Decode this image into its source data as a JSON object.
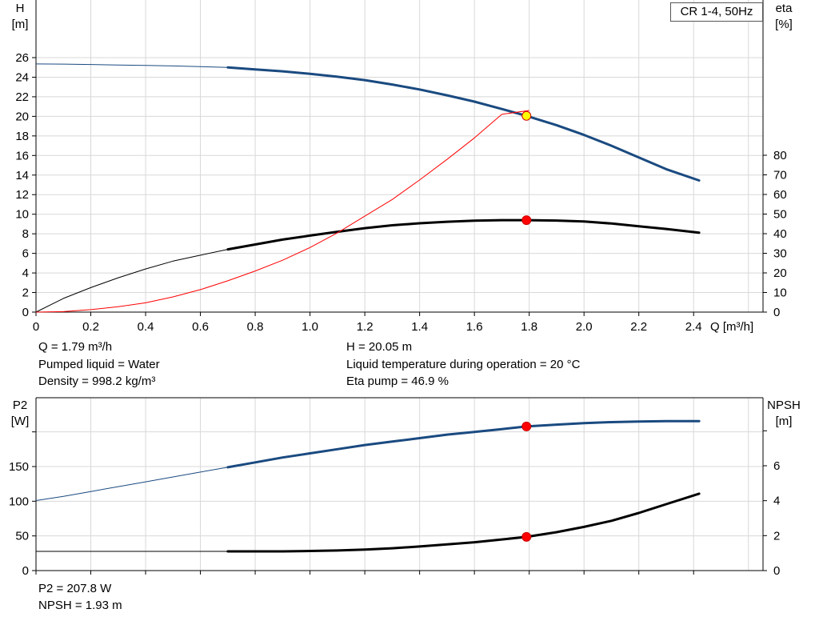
{
  "legend_label": "CR 1-4, 50Hz",
  "info": {
    "q": "Q = 1.79 m³/h",
    "liquid": "Pumped liquid = Water",
    "density": "Density = 998.2 kg/m³",
    "h": "H = 20.05 m",
    "temperature": "Liquid temperature during operation = 20 °C",
    "eta": "Eta pump = 46.9 %",
    "p2": "P2 = 207.8 W",
    "npsh": "NPSH = 1.93 m"
  },
  "chart_data": [
    {
      "type": "line",
      "title": "",
      "xlabel": "Q [m³/h]",
      "xlim": [
        0,
        2.6
      ],
      "xticks": [
        0,
        0.2,
        0.4,
        0.6,
        0.8,
        1.0,
        1.2,
        1.4,
        1.6,
        1.8,
        2.0,
        2.2,
        2.4
      ],
      "xtick_labels": [
        "0",
        "0.2",
        "0.4",
        "0.6",
        "0.8",
        "1.0",
        "1.2",
        "1.4",
        "1.6",
        "1.8",
        "2.0",
        "2.2",
        "2.4"
      ],
      "y_left": {
        "label_top": "H",
        "label_unit": "[m]",
        "lim": [
          0,
          26
        ],
        "ticks": [
          0,
          2,
          4,
          6,
          8,
          10,
          12,
          14,
          16,
          18,
          20,
          22,
          24,
          26
        ]
      },
      "y_right": {
        "label_top": "eta",
        "label_unit": "[%]",
        "lim": [
          0,
          130
        ],
        "ticks": [
          0,
          10,
          20,
          30,
          40,
          50,
          60,
          70,
          80
        ]
      },
      "grid": true,
      "operating_point_x": 1.79,
      "series": [
        {
          "axis": "left",
          "color": "#1a4a80",
          "bold_from": 0.7,
          "x": [
            0,
            0.1,
            0.2,
            0.3,
            0.4,
            0.5,
            0.6,
            0.7,
            0.8,
            0.9,
            1.0,
            1.1,
            1.2,
            1.3,
            1.4,
            1.5,
            1.6,
            1.7,
            1.79,
            1.9,
            2.0,
            2.1,
            2.2,
            2.3,
            2.42
          ],
          "y": [
            25.35,
            25.34,
            25.3,
            25.25,
            25.2,
            25.15,
            25.08,
            25.0,
            24.8,
            24.6,
            24.35,
            24.05,
            23.7,
            23.25,
            22.75,
            22.15,
            21.5,
            20.75,
            20.05,
            19.1,
            18.1,
            17.0,
            15.8,
            14.6,
            13.45
          ]
        },
        {
          "axis": "right",
          "color": "#000000",
          "bold_from": 0.7,
          "x": [
            0,
            0.1,
            0.2,
            0.3,
            0.4,
            0.5,
            0.6,
            0.7,
            0.8,
            0.9,
            1.0,
            1.1,
            1.2,
            1.3,
            1.4,
            1.5,
            1.6,
            1.7,
            1.79,
            1.9,
            2.0,
            2.1,
            2.2,
            2.3,
            2.42
          ],
          "y": [
            0,
            7,
            12.5,
            17.5,
            22,
            26,
            29,
            32,
            34.5,
            37,
            39,
            41,
            42.8,
            44.3,
            45.3,
            46.1,
            46.6,
            46.9,
            46.9,
            46.7,
            46.2,
            45.2,
            43.8,
            42.4,
            40.5
          ]
        },
        {
          "axis": "left",
          "color": "#ff0000",
          "bold_from": null,
          "x": [
            0,
            0.1,
            0.2,
            0.3,
            0.4,
            0.5,
            0.6,
            0.7,
            0.8,
            0.9,
            1.0,
            1.1,
            1.2,
            1.3,
            1.4,
            1.5,
            1.6,
            1.7,
            1.8
          ],
          "y": [
            0,
            0.05,
            0.25,
            0.55,
            0.95,
            1.55,
            2.3,
            3.2,
            4.2,
            5.3,
            6.6,
            8.1,
            9.8,
            11.5,
            13.5,
            15.6,
            17.8,
            20.2,
            20.6
          ]
        }
      ],
      "markers": [
        {
          "x": 1.79,
          "y": 20.05,
          "axis": "left",
          "color": "#ffff00"
        },
        {
          "x": 1.79,
          "y": 46.9,
          "axis": "right",
          "color": "#ff0000"
        }
      ]
    },
    {
      "type": "line",
      "title": "",
      "xlabel": "",
      "xlim": [
        0,
        2.6
      ],
      "xticks": [
        0,
        0.2,
        0.4,
        0.6,
        0.8,
        1.0,
        1.2,
        1.4,
        1.6,
        1.8,
        2.0,
        2.2,
        2.4
      ],
      "xtick_labels": [],
      "y_left": {
        "label_top": "P2",
        "label_unit": "[W]",
        "lim": [
          0,
          200
        ],
        "ticks": [
          0,
          50,
          100,
          150,
          200
        ],
        "tick_labels": [
          "0",
          "50",
          "100",
          "150",
          ""
        ]
      },
      "y_right": {
        "label_top": "NPSH",
        "label_unit": "[m]",
        "lim": [
          0,
          8
        ],
        "ticks": [
          0,
          2,
          4,
          6,
          8
        ],
        "tick_labels": [
          "0",
          "2",
          "4",
          "6",
          ""
        ]
      },
      "grid": true,
      "series": [
        {
          "axis": "left",
          "color": "#1a4a80",
          "bold_from": 0.7,
          "x": [
            0,
            0.1,
            0.2,
            0.3,
            0.4,
            0.5,
            0.6,
            0.7,
            0.8,
            0.9,
            1.0,
            1.1,
            1.2,
            1.3,
            1.4,
            1.5,
            1.6,
            1.7,
            1.79,
            1.9,
            2.0,
            2.1,
            2.2,
            2.3,
            2.42
          ],
          "y": [
            101,
            107,
            114,
            121,
            128,
            135,
            142,
            149,
            156,
            163,
            169,
            175,
            181,
            186,
            191,
            196,
            200,
            204,
            207.8,
            210.5,
            212.5,
            214,
            215,
            215.5,
            215.5
          ]
        },
        {
          "axis": "right",
          "color": "#000000",
          "bold_from": 0.7,
          "x": [
            0,
            0.2,
            0.4,
            0.6,
            0.7,
            0.8,
            0.9,
            1.0,
            1.1,
            1.2,
            1.3,
            1.4,
            1.5,
            1.6,
            1.7,
            1.79,
            1.9,
            2.0,
            2.1,
            2.2,
            2.3,
            2.42
          ],
          "y": [
            1.1,
            1.1,
            1.1,
            1.1,
            1.1,
            1.1,
            1.1,
            1.12,
            1.15,
            1.2,
            1.28,
            1.38,
            1.5,
            1.62,
            1.78,
            1.93,
            2.2,
            2.5,
            2.85,
            3.3,
            3.8,
            4.4
          ]
        }
      ],
      "markers": [
        {
          "x": 1.79,
          "y": 207.8,
          "axis": "left",
          "color": "#ff0000"
        },
        {
          "x": 1.79,
          "y": 1.93,
          "axis": "right",
          "color": "#ff0000"
        }
      ]
    }
  ]
}
